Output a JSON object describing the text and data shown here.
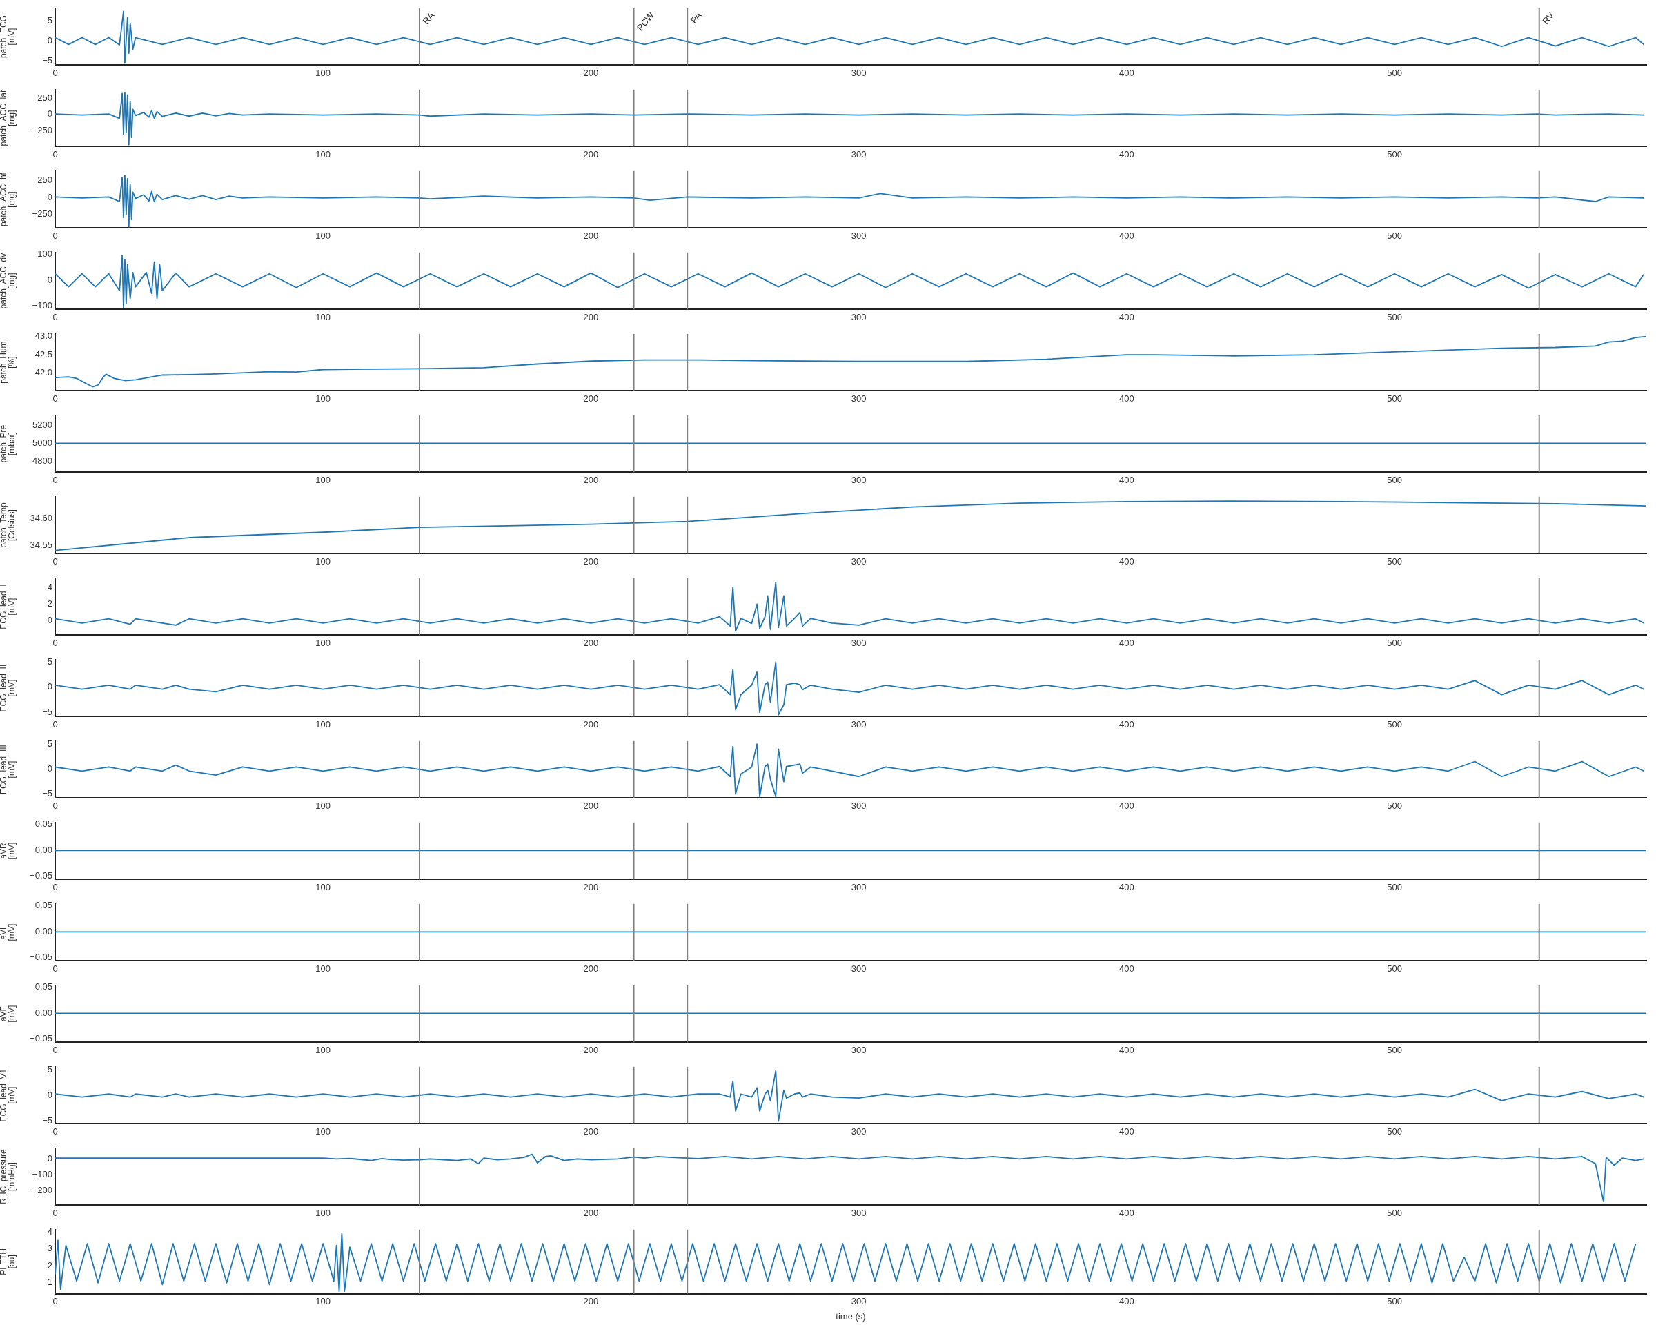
{
  "chart_data": [
    {
      "type": "line",
      "ylabel": "patch_ECG\n[mV]",
      "color": "#1f77b4",
      "xlim": [
        0,
        594
      ],
      "xticks": [
        0,
        100,
        200,
        300,
        400,
        500
      ],
      "ylim": [
        -6,
        8.3
      ],
      "yticks": [
        {
          "value": -5,
          "label": "−5"
        },
        0,
        5
      ],
      "ref_lines": [
        {
          "axis": "x",
          "value": 136,
          "label": "RA",
          "color": "#808080"
        },
        {
          "axis": "x",
          "value": 216,
          "label": "PCW",
          "color": "#808080"
        },
        {
          "axis": "x",
          "value": 236,
          "label": "PA",
          "color": "#808080"
        },
        {
          "axis": "x",
          "value": 554,
          "label": "RV",
          "color": "#808080"
        }
      ],
      "x": [
        0,
        5,
        10,
        15,
        20,
        24,
        25.5,
        26,
        27,
        27.5,
        28,
        29,
        30,
        40,
        50,
        60,
        70,
        80,
        90,
        100,
        110,
        120,
        130,
        140,
        150,
        160,
        170,
        180,
        190,
        200,
        210,
        220,
        230,
        240,
        250,
        260,
        270,
        280,
        290,
        300,
        310,
        320,
        330,
        340,
        350,
        360,
        370,
        380,
        390,
        400,
        410,
        420,
        430,
        440,
        450,
        460,
        470,
        480,
        490,
        500,
        510,
        520,
        530,
        540,
        550,
        560,
        570,
        580,
        590,
        593
      ],
      "values": [
        0.9,
        -0.8,
        0.9,
        -0.8,
        0.9,
        -0.9,
        7.5,
        -5.5,
        6,
        -3,
        4.5,
        -2,
        0.9,
        -0.8,
        0.9,
        -0.8,
        0.9,
        -0.8,
        0.9,
        -0.8,
        0.9,
        -0.8,
        0.9,
        -0.8,
        0.9,
        -0.8,
        0.9,
        -0.8,
        0.9,
        -0.8,
        0.9,
        -0.8,
        0.9,
        -0.8,
        0.9,
        -0.8,
        0.9,
        -0.8,
        0.9,
        -0.8,
        0.9,
        -0.8,
        0.9,
        -0.8,
        0.9,
        -0.8,
        0.9,
        -0.8,
        0.9,
        -0.8,
        0.9,
        -0.8,
        0.9,
        -0.8,
        0.9,
        -0.8,
        0.9,
        -0.8,
        0.9,
        -0.8,
        0.9,
        -0.8,
        0.9,
        -1.3,
        0.9,
        -1.2,
        0.9,
        -1.3,
        0.9,
        -0.8
      ]
    },
    {
      "type": "line",
      "ylabel": "patch_ACC_lat\n[mg]",
      "color": "#1f77b4",
      "xlim": [
        0,
        594
      ],
      "xticks": [
        0,
        100,
        200,
        300,
        400,
        500
      ],
      "ylim": [
        -490,
        380
      ],
      "yticks": [
        {
          "value": -250,
          "label": "−250"
        },
        0,
        250
      ],
      "ref_lines": [
        {
          "axis": "x",
          "value": 136,
          "color": "#808080"
        },
        {
          "axis": "x",
          "value": 216,
          "color": "#808080"
        },
        {
          "axis": "x",
          "value": 236,
          "color": "#808080"
        },
        {
          "axis": "x",
          "value": 554,
          "color": "#808080"
        }
      ],
      "x": [
        0,
        10,
        20,
        24,
        25,
        25.5,
        26,
        26.5,
        27,
        27.5,
        28,
        28.5,
        29,
        30,
        33,
        35,
        36,
        37,
        38,
        40,
        45,
        50,
        55,
        60,
        65,
        70,
        80,
        100,
        120,
        136,
        140,
        160,
        180,
        200,
        216,
        236,
        260,
        280,
        300,
        320,
        340,
        360,
        380,
        400,
        420,
        440,
        460,
        480,
        500,
        520,
        540,
        553,
        560,
        580,
        593
      ],
      "values": [
        8,
        -8,
        8,
        -60,
        320,
        -300,
        330,
        -280,
        300,
        -460,
        200,
        -350,
        80,
        -15,
        30,
        -40,
        60,
        -60,
        45,
        -30,
        20,
        -25,
        20,
        -20,
        15,
        -8,
        8,
        -8,
        8,
        -8,
        -25,
        8,
        -8,
        8,
        -8,
        8,
        -8,
        8,
        -8,
        8,
        -8,
        8,
        -8,
        8,
        -8,
        8,
        -8,
        8,
        -8,
        8,
        -8,
        8,
        -8,
        8,
        -8
      ]
    },
    {
      "type": "line",
      "ylabel": "patch_ACC_hf\n[mg]",
      "color": "#1f77b4",
      "xlim": [
        0,
        594
      ],
      "xticks": [
        0,
        100,
        200,
        300,
        400,
        500
      ],
      "ylim": [
        -455,
        395
      ],
      "yticks": [
        {
          "value": -250,
          "label": "−250"
        },
        0,
        250
      ],
      "ref_lines": [
        {
          "axis": "x",
          "value": 136,
          "color": "#808080"
        },
        {
          "axis": "x",
          "value": 216,
          "color": "#808080"
        },
        {
          "axis": "x",
          "value": 236,
          "color": "#808080"
        },
        {
          "axis": "x",
          "value": 554,
          "color": "#808080"
        }
      ],
      "x": [
        0,
        10,
        20,
        24,
        25,
        25.5,
        26,
        26.5,
        27,
        27.5,
        28,
        28.5,
        29,
        30,
        33,
        35,
        36,
        37,
        38,
        40,
        45,
        50,
        55,
        60,
        65,
        70,
        80,
        100,
        120,
        136,
        140,
        160,
        180,
        200,
        216,
        222,
        236,
        260,
        280,
        300,
        308,
        320,
        340,
        360,
        380,
        400,
        420,
        440,
        460,
        480,
        500,
        520,
        540,
        553,
        560,
        575,
        580,
        593
      ],
      "values": [
        8,
        -8,
        8,
        -60,
        300,
        -300,
        330,
        -250,
        280,
        -440,
        200,
        -330,
        80,
        -15,
        40,
        -50,
        90,
        -60,
        50,
        -30,
        30,
        -25,
        30,
        -30,
        20,
        -8,
        8,
        -8,
        8,
        -8,
        -20,
        20,
        -8,
        8,
        -8,
        -40,
        8,
        -8,
        8,
        -8,
        60,
        -8,
        8,
        -8,
        8,
        -8,
        8,
        -8,
        8,
        -8,
        8,
        -8,
        8,
        -8,
        8,
        -60,
        8,
        -8
      ]
    },
    {
      "type": "line",
      "ylabel": "patch_ACC_dv\n[mg]",
      "color": "#1f77b4",
      "xlim": [
        0,
        594
      ],
      "xticks": [
        0,
        100,
        200,
        300,
        400,
        500
      ],
      "ylim": [
        -112,
        107
      ],
      "yticks": [
        {
          "value": -100,
          "label": "−100"
        },
        0,
        100
      ],
      "ref_lines": [
        {
          "axis": "x",
          "value": 136,
          "color": "#808080"
        },
        {
          "axis": "x",
          "value": 216,
          "color": "#808080"
        },
        {
          "axis": "x",
          "value": 236,
          "color": "#808080"
        },
        {
          "axis": "x",
          "value": 554,
          "color": "#808080"
        }
      ],
      "x": [
        0,
        5,
        10,
        15,
        20,
        24,
        25,
        25.5,
        26,
        26.5,
        27,
        28,
        29,
        30,
        34,
        36,
        37,
        38,
        39,
        40,
        45,
        50,
        60,
        70,
        80,
        90,
        100,
        110,
        120,
        130,
        140,
        150,
        160,
        170,
        180,
        190,
        200,
        210,
        220,
        230,
        240,
        250,
        260,
        270,
        280,
        290,
        300,
        310,
        320,
        330,
        340,
        350,
        360,
        370,
        380,
        390,
        400,
        410,
        420,
        430,
        440,
        450,
        460,
        470,
        480,
        490,
        500,
        510,
        520,
        530,
        540,
        550,
        560,
        570,
        580,
        590,
        593
      ],
      "values": [
        25,
        -25,
        25,
        -25,
        25,
        -40,
        95,
        -105,
        80,
        -90,
        60,
        -70,
        30,
        -25,
        30,
        -50,
        70,
        -70,
        60,
        -40,
        28,
        -25,
        25,
        -25,
        25,
        -28,
        25,
        -25,
        28,
        -25,
        25,
        -25,
        25,
        -25,
        25,
        -25,
        28,
        -28,
        25,
        -25,
        25,
        -25,
        28,
        -25,
        25,
        -25,
        25,
        -28,
        25,
        -25,
        25,
        -25,
        25,
        -25,
        28,
        -25,
        25,
        -25,
        25,
        -25,
        25,
        -25,
        25,
        -25,
        25,
        -25,
        25,
        -25,
        25,
        -25,
        22,
        -30,
        22,
        -25,
        25,
        -25,
        22
      ]
    },
    {
      "type": "line",
      "ylabel": "patch_Hum\n[%]",
      "color": "#1f77b4",
      "xlim": [
        0,
        594
      ],
      "xticks": [
        0,
        100,
        200,
        300,
        400,
        500
      ],
      "ylim": [
        41.52,
        43.07
      ],
      "yticks": [
        {
          "value": 42,
          "label": "42.0"
        },
        42.5,
        {
          "value": 43,
          "label": "43.0"
        }
      ],
      "ref_lines": [
        {
          "axis": "x",
          "value": 136,
          "color": "#808080"
        },
        {
          "axis": "x",
          "value": 216,
          "color": "#808080"
        },
        {
          "axis": "x",
          "value": 236,
          "color": "#808080"
        },
        {
          "axis": "x",
          "value": 554,
          "color": "#808080"
        }
      ],
      "x": [
        0,
        5,
        8,
        12,
        14,
        16,
        18,
        19,
        22,
        26,
        30,
        40,
        50,
        60,
        80,
        90,
        100,
        136,
        160,
        180,
        200,
        220,
        240,
        260,
        300,
        340,
        370,
        400,
        410,
        440,
        470,
        500,
        540,
        560,
        575,
        580,
        585,
        590,
        594
      ],
      "values": [
        41.88,
        41.9,
        41.86,
        41.7,
        41.63,
        41.68,
        41.9,
        41.97,
        41.86,
        41.8,
        41.82,
        41.95,
        41.96,
        41.98,
        42.04,
        42.03,
        42.1,
        42.12,
        42.15,
        42.25,
        42.33,
        42.36,
        42.36,
        42.34,
        42.32,
        42.32,
        42.38,
        42.5,
        42.5,
        42.47,
        42.5,
        42.58,
        42.68,
        42.7,
        42.74,
        42.85,
        42.87,
        42.97,
        43.0
      ]
    },
    {
      "type": "line",
      "ylabel": "patch_Pre\n[mbar]",
      "color": "#1f77b4",
      "xlim": [
        0,
        594
      ],
      "xticks": [
        0,
        100,
        200,
        300,
        400,
        500
      ],
      "ylim": [
        4680,
        5310
      ],
      "yticks": [
        4800,
        5000,
        5200
      ],
      "ref_lines": [
        {
          "axis": "x",
          "value": 136,
          "color": "#808080"
        },
        {
          "axis": "x",
          "value": 216,
          "color": "#808080"
        },
        {
          "axis": "x",
          "value": 236,
          "color": "#808080"
        },
        {
          "axis": "x",
          "value": 554,
          "color": "#808080"
        }
      ],
      "x": [
        0,
        594
      ],
      "values": [
        5000,
        5000
      ]
    },
    {
      "type": "line",
      "ylabel": "patch_Temp\n[Celsius]",
      "color": "#1f77b4",
      "xlim": [
        0,
        594
      ],
      "xticks": [
        0,
        100,
        200,
        300,
        400,
        500
      ],
      "ylim": [
        34.535,
        34.641
      ],
      "yticks": [
        34.55,
        {
          "value": 34.6,
          "label": "34.60"
        }
      ],
      "ref_lines": [
        {
          "axis": "x",
          "value": 136,
          "color": "#808080"
        },
        {
          "axis": "x",
          "value": 216,
          "color": "#808080"
        },
        {
          "axis": "x",
          "value": 236,
          "color": "#808080"
        },
        {
          "axis": "x",
          "value": 554,
          "color": "#808080"
        }
      ],
      "x": [
        0,
        50,
        100,
        136,
        200,
        236,
        280,
        320,
        360,
        400,
        440,
        480,
        520,
        560,
        594
      ],
      "values": [
        34.541,
        34.565,
        34.575,
        34.584,
        34.59,
        34.595,
        34.61,
        34.622,
        34.629,
        34.632,
        34.633,
        34.632,
        34.63,
        34.628,
        34.624
      ]
    },
    {
      "type": "line",
      "ylabel": "ECG_lead_I\n[mV]",
      "color": "#1f77b4",
      "xlim": [
        0,
        594
      ],
      "xticks": [
        0,
        100,
        200,
        300,
        400,
        500
      ],
      "ylim": [
        -1.7,
        5.1
      ],
      "yticks": [
        0,
        2,
        4
      ],
      "ref_lines": [
        {
          "axis": "x",
          "value": 136,
          "color": "#808080"
        },
        {
          "axis": "x",
          "value": 216,
          "color": "#808080"
        },
        {
          "axis": "x",
          "value": 236,
          "color": "#808080"
        },
        {
          "axis": "x",
          "value": 554,
          "color": "#808080"
        }
      ],
      "x": [
        0,
        10,
        20,
        28,
        30,
        40,
        45,
        50,
        60,
        70,
        80,
        90,
        100,
        110,
        120,
        130,
        140,
        150,
        160,
        170,
        180,
        190,
        200,
        210,
        220,
        230,
        240,
        248,
        252,
        253,
        254,
        256,
        260,
        262,
        263,
        265,
        266,
        267,
        269,
        270,
        272,
        273,
        276,
        278,
        279,
        282,
        290,
        300,
        310,
        320,
        330,
        340,
        350,
        360,
        370,
        380,
        390,
        400,
        410,
        420,
        430,
        440,
        450,
        460,
        470,
        480,
        490,
        500,
        510,
        520,
        530,
        540,
        550,
        560,
        570,
        580,
        590,
        593
      ],
      "values": [
        0.25,
        -0.25,
        0.25,
        -0.4,
        0.25,
        -0.25,
        -0.5,
        0.25,
        -0.25,
        0.25,
        -0.25,
        0.25,
        -0.25,
        0.25,
        -0.25,
        0.25,
        -0.25,
        0.25,
        -0.25,
        0.25,
        -0.25,
        0.25,
        -0.25,
        0.25,
        -0.25,
        0.25,
        -0.25,
        0.5,
        -0.6,
        4,
        -1.2,
        0.3,
        -0.3,
        2,
        -0.9,
        0.5,
        3,
        -1,
        4.6,
        -0.8,
        3,
        -0.6,
        0.3,
        1,
        -0.6,
        0.3,
        -0.25,
        -0.5,
        0.25,
        -0.25,
        0.25,
        -0.25,
        0.25,
        -0.25,
        0.25,
        -0.25,
        0.25,
        -0.25,
        0.25,
        -0.25,
        0.25,
        -0.25,
        0.25,
        -0.25,
        0.25,
        -0.25,
        0.25,
        -0.25,
        0.25,
        -0.25,
        0.25,
        -0.25,
        0.25,
        -0.25,
        0.25,
        -0.25,
        0.25,
        -0.25
      ]
    },
    {
      "type": "line",
      "ylabel": "ECG_lead_II\n[mV]",
      "color": "#1f77b4",
      "xlim": [
        0,
        594
      ],
      "xticks": [
        0,
        100,
        200,
        300,
        400,
        500
      ],
      "ylim": [
        -5.85,
        5.47
      ],
      "yticks": [
        {
          "value": -5,
          "label": "−5"
        },
        0,
        5
      ],
      "ref_lines": [
        {
          "axis": "x",
          "value": 136,
          "color": "#808080"
        },
        {
          "axis": "x",
          "value": 216,
          "color": "#808080"
        },
        {
          "axis": "x",
          "value": 236,
          "color": "#808080"
        },
        {
          "axis": "x",
          "value": 554,
          "color": "#808080"
        }
      ],
      "x": [
        0,
        10,
        20,
        28,
        30,
        40,
        45,
        50,
        60,
        70,
        80,
        90,
        100,
        110,
        120,
        130,
        140,
        150,
        160,
        170,
        180,
        190,
        200,
        210,
        220,
        230,
        240,
        248,
        252,
        253,
        254,
        256,
        260,
        262,
        263,
        265,
        266,
        267,
        269,
        270,
        272,
        273,
        276,
        278,
        279,
        282,
        290,
        300,
        310,
        320,
        330,
        340,
        350,
        360,
        370,
        380,
        390,
        400,
        410,
        420,
        430,
        440,
        450,
        460,
        470,
        480,
        490,
        500,
        510,
        520,
        530,
        540,
        550,
        560,
        570,
        580,
        590,
        593
      ],
      "values": [
        0.4,
        -0.4,
        0.4,
        -0.4,
        0.4,
        -0.4,
        0.4,
        -0.4,
        -0.9,
        0.4,
        -0.4,
        0.4,
        -0.4,
        0.4,
        -0.4,
        0.4,
        -0.4,
        0.4,
        -0.4,
        0.4,
        -0.4,
        0.4,
        -0.4,
        0.4,
        -0.4,
        0.4,
        -0.4,
        0.5,
        -1.5,
        3.5,
        -4.5,
        -1.5,
        0.4,
        3,
        -5,
        0.5,
        1,
        -3,
        5,
        -5.5,
        -3.5,
        0.5,
        0.8,
        0.5,
        -0.5,
        0.4,
        -0.4,
        -1,
        0.4,
        -0.4,
        0.4,
        -0.4,
        0.4,
        -0.4,
        0.4,
        -0.4,
        0.4,
        -0.4,
        0.4,
        -0.4,
        0.4,
        -0.4,
        0.4,
        -0.4,
        0.4,
        -0.4,
        0.4,
        -0.4,
        0.4,
        -0.4,
        1.3,
        -1.5,
        0.4,
        -0.4,
        1.3,
        -1.5,
        0.4,
        -0.4
      ]
    },
    {
      "type": "line",
      "ylabel": "ECG_lead_III\n[mV]",
      "color": "#1f77b4",
      "xlim": [
        0,
        594
      ],
      "xticks": [
        0,
        100,
        200,
        300,
        400,
        500
      ],
      "ylim": [
        -5.8,
        5.6
      ],
      "yticks": [
        {
          "value": -5,
          "label": "−5"
        },
        0,
        5
      ],
      "ref_lines": [
        {
          "axis": "x",
          "value": 136,
          "color": "#808080"
        },
        {
          "axis": "x",
          "value": 216,
          "color": "#808080"
        },
        {
          "axis": "x",
          "value": 236,
          "color": "#808080"
        },
        {
          "axis": "x",
          "value": 554,
          "color": "#808080"
        }
      ],
      "x": [
        0,
        10,
        20,
        28,
        30,
        40,
        45,
        50,
        60,
        70,
        80,
        90,
        100,
        110,
        120,
        130,
        140,
        150,
        160,
        170,
        180,
        190,
        200,
        210,
        220,
        230,
        240,
        248,
        252,
        253,
        254,
        256,
        260,
        262,
        263,
        265,
        266,
        267,
        269,
        270,
        272,
        273,
        276,
        278,
        279,
        282,
        290,
        300,
        310,
        320,
        330,
        340,
        350,
        360,
        370,
        380,
        390,
        400,
        410,
        420,
        430,
        440,
        450,
        460,
        470,
        480,
        490,
        500,
        510,
        520,
        530,
        540,
        550,
        560,
        570,
        580,
        590,
        593
      ],
      "values": [
        0.4,
        -0.4,
        0.4,
        -0.4,
        0.4,
        -0.4,
        0.8,
        -0.4,
        -1.2,
        0.4,
        -0.4,
        0.4,
        -0.4,
        0.4,
        -0.4,
        0.4,
        -0.4,
        0.4,
        -0.4,
        0.4,
        -0.4,
        0.4,
        -0.4,
        0.4,
        -0.4,
        0.4,
        -0.4,
        0.5,
        -1.5,
        4.5,
        -5,
        -1,
        0.4,
        5,
        -5.5,
        0.5,
        1,
        -2,
        -5.5,
        4,
        -2.5,
        0.5,
        0.8,
        1,
        -0.8,
        0.4,
        -0.4,
        -1.5,
        0.4,
        -0.4,
        0.4,
        -0.4,
        0.4,
        -0.4,
        0.4,
        -0.4,
        0.4,
        -0.4,
        0.4,
        -0.4,
        0.4,
        -0.4,
        0.4,
        -0.4,
        0.4,
        -0.4,
        0.4,
        -0.4,
        0.4,
        -0.4,
        1.5,
        -1.5,
        0.4,
        -0.4,
        1.5,
        -1.5,
        0.4,
        -0.4
      ]
    },
    {
      "type": "line",
      "ylabel": "aVR\n[mV]",
      "color": "#1f77b4",
      "xlim": [
        0,
        594
      ],
      "xticks": [
        0,
        100,
        200,
        300,
        400,
        500
      ],
      "ylim": [
        -0.056,
        0.054
      ],
      "yticks": [
        {
          "value": -0.05,
          "label": "−0.05"
        },
        {
          "value": 0,
          "label": "0.00"
        },
        0.05
      ],
      "ref_lines": [
        {
          "axis": "x",
          "value": 136,
          "color": "#808080"
        },
        {
          "axis": "x",
          "value": 216,
          "color": "#808080"
        },
        {
          "axis": "x",
          "value": 236,
          "color": "#808080"
        },
        {
          "axis": "x",
          "value": 554,
          "color": "#808080"
        }
      ],
      "x": [
        0,
        594
      ],
      "values": [
        0,
        0
      ]
    },
    {
      "type": "line",
      "ylabel": "aVL\n[mV]",
      "color": "#1f77b4",
      "xlim": [
        0,
        594
      ],
      "xticks": [
        0,
        100,
        200,
        300,
        400,
        500
      ],
      "ylim": [
        -0.056,
        0.054
      ],
      "yticks": [
        {
          "value": -0.05,
          "label": "−0.05"
        },
        {
          "value": 0,
          "label": "0.00"
        },
        0.05
      ],
      "ref_lines": [
        {
          "axis": "x",
          "value": 136,
          "color": "#808080"
        },
        {
          "axis": "x",
          "value": 216,
          "color": "#808080"
        },
        {
          "axis": "x",
          "value": 236,
          "color": "#808080"
        },
        {
          "axis": "x",
          "value": 554,
          "color": "#808080"
        }
      ],
      "x": [
        0,
        594
      ],
      "values": [
        0,
        0
      ]
    },
    {
      "type": "line",
      "ylabel": "aVF\n[mV]",
      "color": "#1f77b4",
      "xlim": [
        0,
        594
      ],
      "xticks": [
        0,
        100,
        200,
        300,
        400,
        500
      ],
      "ylim": [
        -0.056,
        0.054
      ],
      "yticks": [
        {
          "value": -0.05,
          "label": "−0.05"
        },
        {
          "value": 0,
          "label": "0.00"
        },
        0.05
      ],
      "ref_lines": [
        {
          "axis": "x",
          "value": 136,
          "color": "#808080"
        },
        {
          "axis": "x",
          "value": 216,
          "color": "#808080"
        },
        {
          "axis": "x",
          "value": 236,
          "color": "#808080"
        },
        {
          "axis": "x",
          "value": 554,
          "color": "#808080"
        }
      ],
      "x": [
        0,
        594
      ],
      "values": [
        0,
        0
      ]
    },
    {
      "type": "line",
      "ylabel": "ECG_lead_V1\n[mV]",
      "color": "#1f77b4",
      "xlim": [
        0,
        594
      ],
      "xticks": [
        0,
        100,
        200,
        300,
        400,
        500
      ],
      "ylim": [
        -5.5,
        5.6
      ],
      "yticks": [
        {
          "value": -5,
          "label": "−5"
        },
        0,
        5
      ],
      "ref_lines": [
        {
          "axis": "x",
          "value": 136,
          "color": "#808080"
        },
        {
          "axis": "x",
          "value": 216,
          "color": "#808080"
        },
        {
          "axis": "x",
          "value": 236,
          "color": "#808080"
        },
        {
          "axis": "x",
          "value": 554,
          "color": "#808080"
        }
      ],
      "x": [
        0,
        10,
        20,
        28,
        30,
        40,
        45,
        50,
        60,
        70,
        80,
        90,
        100,
        110,
        120,
        130,
        140,
        150,
        160,
        170,
        180,
        190,
        200,
        210,
        220,
        230,
        240,
        248,
        252,
        253,
        254,
        256,
        260,
        262,
        263,
        265,
        266,
        267,
        269,
        270,
        272,
        273,
        276,
        278,
        279,
        282,
        290,
        300,
        310,
        320,
        330,
        340,
        350,
        360,
        370,
        380,
        390,
        400,
        410,
        420,
        430,
        440,
        450,
        460,
        470,
        480,
        490,
        500,
        510,
        520,
        530,
        540,
        550,
        560,
        570,
        580,
        590,
        593
      ],
      "values": [
        0.3,
        -0.3,
        0.3,
        -0.3,
        0.3,
        -0.3,
        0.3,
        -0.3,
        0.3,
        -0.3,
        0.3,
        -0.3,
        0.3,
        -0.3,
        0.3,
        -0.3,
        0.3,
        -0.3,
        0.3,
        -0.3,
        0.3,
        -0.3,
        0.3,
        -0.3,
        0.3,
        -0.3,
        0.3,
        0.3,
        -0.3,
        2.8,
        -3,
        0.3,
        -0.3,
        1.5,
        -3,
        0.3,
        1,
        -1,
        4.8,
        -5,
        1,
        -0.5,
        0.3,
        0.5,
        -0.3,
        0.3,
        -0.3,
        -0.5,
        0.3,
        -0.3,
        0.3,
        -0.3,
        0.3,
        -0.3,
        0.3,
        -0.3,
        0.3,
        -0.3,
        0.3,
        -0.3,
        0.3,
        -0.3,
        0.3,
        -0.3,
        0.3,
        -0.3,
        0.3,
        -0.3,
        0.3,
        -0.3,
        1.2,
        -1,
        0.3,
        -0.3,
        0.8,
        -0.6,
        0.3,
        -0.3
      ]
    },
    {
      "type": "line",
      "ylabel": "RHC_pressure\n[mmHg]",
      "color": "#1f77b4",
      "xlim": [
        0,
        594
      ],
      "xticks": [
        0,
        100,
        200,
        300,
        400,
        500
      ],
      "ylim": [
        -293,
        68
      ],
      "yticks": [
        {
          "value": -200,
          "label": "−200"
        },
        {
          "value": -100,
          "label": "−100"
        },
        0
      ],
      "ref_lines": [
        {
          "axis": "x",
          "value": 136,
          "color": "#808080"
        },
        {
          "axis": "x",
          "value": 216,
          "color": "#808080"
        },
        {
          "axis": "x",
          "value": 236,
          "color": "#808080"
        },
        {
          "axis": "x",
          "value": 554,
          "color": "#808080"
        }
      ],
      "x": [
        0,
        50,
        100,
        105,
        110,
        115,
        118,
        122,
        125,
        130,
        136,
        140,
        145,
        150,
        155,
        158,
        160,
        165,
        170,
        175,
        178,
        180,
        183,
        185,
        190,
        195,
        200,
        210,
        216,
        220,
        225,
        230,
        240,
        250,
        260,
        270,
        280,
        290,
        300,
        310,
        320,
        330,
        340,
        350,
        360,
        370,
        380,
        390,
        400,
        410,
        420,
        430,
        440,
        450,
        460,
        470,
        480,
        490,
        500,
        510,
        520,
        530,
        540,
        550,
        560,
        570,
        575,
        578,
        579,
        582,
        585,
        590,
        593
      ],
      "values": [
        5,
        5,
        5,
        0,
        3,
        -5,
        -10,
        2,
        -3,
        -8,
        -5,
        0,
        -5,
        -10,
        0,
        -30,
        5,
        -5,
        0,
        10,
        30,
        -25,
        15,
        20,
        -10,
        0,
        -5,
        0,
        12,
        5,
        15,
        10,
        2,
        15,
        0,
        15,
        0,
        15,
        0,
        15,
        0,
        15,
        0,
        15,
        0,
        15,
        0,
        15,
        0,
        15,
        0,
        15,
        0,
        15,
        0,
        15,
        0,
        15,
        0,
        15,
        0,
        15,
        0,
        15,
        0,
        15,
        -30,
        -270,
        10,
        -40,
        5,
        -10,
        0
      ]
    },
    {
      "type": "line",
      "ylabel": "PLETH\n[au]",
      "xlabel": "time (s)",
      "color": "#1f77b4",
      "xlim": [
        0,
        594
      ],
      "xticks": [
        0,
        100,
        200,
        300,
        400,
        500
      ],
      "ylim": [
        0.35,
        4.13
      ],
      "yticks": [
        1,
        2,
        3,
        4
      ],
      "ref_lines": [
        {
          "axis": "x",
          "value": 136,
          "color": "#808080"
        },
        {
          "axis": "x",
          "value": 216,
          "color": "#808080"
        },
        {
          "axis": "x",
          "value": 236,
          "color": "#808080"
        },
        {
          "axis": "x",
          "value": 554,
          "color": "#808080"
        }
      ],
      "x": [
        0,
        1,
        2,
        4,
        8,
        12,
        16,
        20,
        24,
        28,
        32,
        36,
        40,
        44,
        48,
        52,
        56,
        60,
        64,
        68,
        72,
        76,
        80,
        84,
        88,
        92,
        96,
        100,
        104,
        105,
        106,
        107,
        108,
        110,
        114,
        118,
        122,
        126,
        130,
        134,
        138,
        142,
        146,
        150,
        154,
        158,
        162,
        166,
        170,
        174,
        178,
        182,
        186,
        190,
        194,
        198,
        202,
        206,
        210,
        214,
        218,
        222,
        226,
        230,
        234,
        238,
        242,
        246,
        250,
        254,
        258,
        262,
        266,
        270,
        274,
        278,
        282,
        286,
        290,
        294,
        298,
        302,
        306,
        310,
        314,
        318,
        322,
        326,
        330,
        334,
        338,
        342,
        346,
        350,
        354,
        358,
        362,
        366,
        370,
        374,
        378,
        382,
        386,
        390,
        394,
        398,
        402,
        406,
        410,
        414,
        418,
        422,
        426,
        430,
        434,
        438,
        442,
        446,
        450,
        454,
        458,
        462,
        466,
        470,
        474,
        478,
        482,
        486,
        490,
        494,
        498,
        502,
        506,
        510,
        514,
        518,
        522,
        526,
        530,
        534,
        538,
        542,
        546,
        550,
        554,
        558,
        562,
        566,
        570,
        574,
        578,
        582,
        586,
        590
      ],
      "values": [
        1.5,
        3.5,
        0.6,
        3.2,
        1.1,
        3.3,
        1.0,
        3.3,
        1.1,
        3.3,
        1.1,
        3.3,
        0.9,
        3.3,
        1.1,
        3.3,
        1.1,
        3.3,
        1.0,
        3.3,
        1.1,
        3.3,
        0.9,
        3.3,
        1.1,
        3.3,
        1.1,
        3.3,
        1.1,
        3.2,
        0.5,
        3.9,
        0.5,
        3.1,
        1.1,
        3.3,
        1.1,
        3.3,
        1.1,
        3.3,
        1.1,
        3.3,
        1.1,
        3.3,
        1.1,
        3.3,
        1.1,
        3.3,
        1.1,
        3.3,
        1.1,
        3.3,
        1.1,
        3.3,
        1.1,
        3.3,
        1.1,
        3.3,
        1.1,
        3.3,
        1.1,
        3.3,
        1.1,
        3.3,
        1.1,
        3.3,
        1.1,
        3.3,
        1.1,
        3.3,
        1.1,
        3.3,
        1.1,
        3.3,
        1.1,
        3.3,
        1.1,
        3.3,
        1.1,
        3.3,
        1.1,
        3.3,
        1.1,
        3.3,
        1.1,
        3.3,
        1.1,
        3.3,
        1.1,
        3.3,
        1.1,
        3.3,
        1.1,
        3.3,
        1.1,
        3.3,
        1.1,
        3.3,
        1.1,
        3.3,
        1.1,
        3.3,
        1.1,
        3.3,
        1.1,
        3.3,
        1.1,
        3.3,
        1.1,
        3.3,
        1.1,
        3.3,
        1.1,
        3.3,
        1.1,
        3.3,
        1.1,
        3.3,
        1.1,
        3.3,
        1.1,
        3.3,
        1.1,
        3.3,
        1.1,
        3.3,
        1.1,
        3.3,
        1.1,
        3.3,
        1.1,
        3.3,
        1.1,
        3.3,
        1.0,
        3.3,
        1.1,
        2.5,
        1.1,
        3.3,
        1.0,
        3.3,
        1.1,
        3.3,
        1.1,
        3.3,
        1.0,
        3.3,
        1.1,
        3.3,
        1.1,
        3.3,
        1.1,
        3.3
      ]
    }
  ]
}
